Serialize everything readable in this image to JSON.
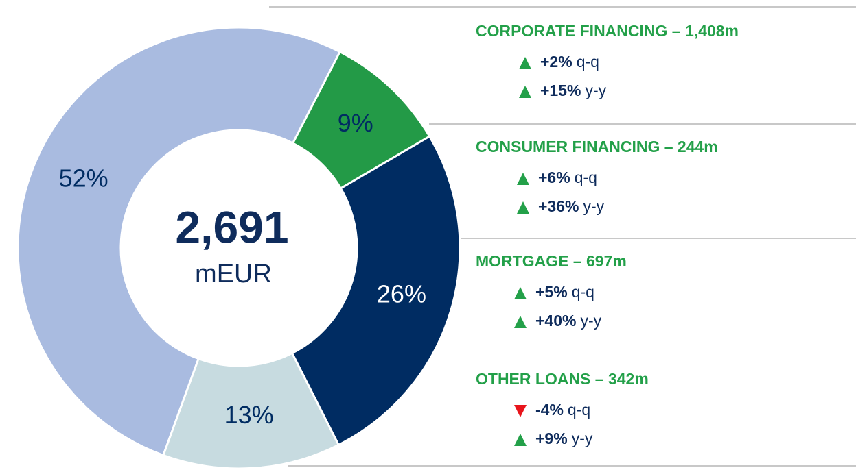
{
  "chart_data": {
    "type": "donut",
    "center_value": "2,691",
    "center_unit": "mEUR",
    "categories": [
      "CORPORATE FINANCING – 1,408m",
      "CONSUMER FINANCING – 244m",
      "MORTGAGE – 697m",
      "OTHER LOANS – 342m"
    ],
    "values": [
      52,
      9,
      26,
      13
    ],
    "value_labels": [
      "52%",
      "9%",
      "26%",
      "13%"
    ],
    "colors": [
      "#a9bbe0",
      "#239a47",
      "#002c62",
      "#c7dbe0"
    ],
    "label_colors": [
      "#002c62",
      "#002c62",
      "#ffffff",
      "#002c62"
    ],
    "changes": [
      [
        {
          "value": "+2%",
          "period": "q-q"
        },
        {
          "value": "+15%",
          "period": "y-y"
        }
      ],
      [
        {
          "value": "+6%",
          "period": "q-q"
        },
        {
          "value": "+36%",
          "period": "y-y"
        }
      ],
      [
        {
          "value": "+5%",
          "period": "q-q"
        },
        {
          "value": "+40%",
          "period": "y-y"
        }
      ],
      [
        {
          "value": "-4%",
          "period": "q-q"
        },
        {
          "value": "+9%",
          "period": "y-y"
        }
      ]
    ]
  }
}
